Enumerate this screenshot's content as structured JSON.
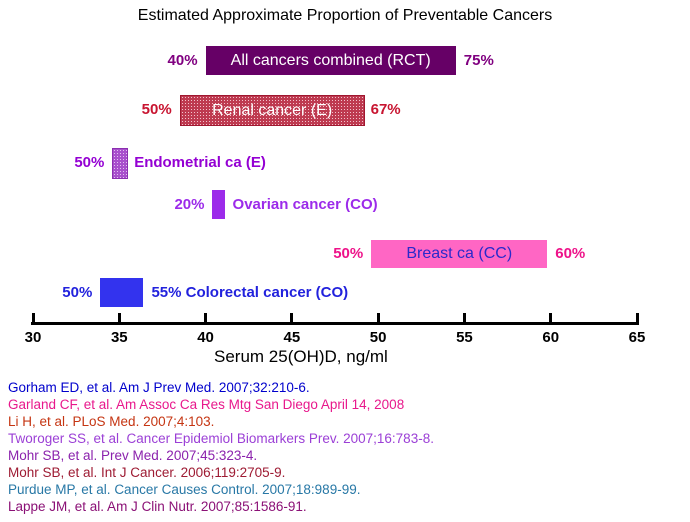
{
  "chart_data": {
    "type": "bar",
    "variant": "horizontal-range-bars",
    "title": "Estimated Approximate Proportion of Preventable Cancers",
    "xlabel": "Serum 25(OH)D, ng/ml",
    "xlim": [
      30,
      65
    ],
    "xticks": [
      "30",
      "35",
      "40",
      "45",
      "50",
      "55",
      "60",
      "65"
    ],
    "grid": false,
    "legend": "none",
    "bars": [
      {
        "name": "all-cancers-combined",
        "label": "All cancers combined (RCT)",
        "label_position": "inside",
        "range_ngml": [
          40.0,
          54.5
        ],
        "left_pct": "40%",
        "right_pct": "75%",
        "fill": "#660066",
        "pattern": false,
        "inside_text_color": "#FFFFFF",
        "accent": "#800080"
      },
      {
        "name": "renal-cancer",
        "label": "Renal cancer (E)",
        "label_position": "inside",
        "range_ngml": [
          38.5,
          49.1
        ],
        "left_pct": "50%",
        "right_pct": "67%",
        "fill": "#BE3A50",
        "pattern": true,
        "pattern_dot": "#F2C2CC",
        "border": "#A01830",
        "inside_text_color": "#FFFFFF",
        "accent": "#C81430"
      },
      {
        "name": "endometrial-ca",
        "label": "Endometrial ca (E)",
        "label_position": "right",
        "range_ngml": [
          34.6,
          35.4
        ],
        "left_pct": "50%",
        "right_pct": "",
        "fill": "#A850CC",
        "pattern": true,
        "pattern_dot": "#E4C0F2",
        "border": "#8B2FB0",
        "inside_text_color": "",
        "accent": "#9400D3"
      },
      {
        "name": "ovarian-cancer",
        "label": "Ovarian cancer (CO)",
        "label_position": "right",
        "range_ngml": [
          40.4,
          41.1
        ],
        "left_pct": "20%",
        "right_pct": "",
        "fill": "#9C2BEA",
        "pattern": false,
        "inside_text_color": "",
        "accent": "#9C2BEA"
      },
      {
        "name": "breast-ca",
        "label": "Breast ca (CC)",
        "label_position": "inside",
        "range_ngml": [
          49.6,
          59.8
        ],
        "left_pct": "50%",
        "right_pct": "60%",
        "fill": "#FF66C4",
        "pattern": false,
        "inside_text_color": "#2A2ACB",
        "accent": "#EE1289"
      },
      {
        "name": "colorectal-cancer",
        "label": "55% Colorectal cancer (CO)",
        "label_position": "right",
        "range_ngml": [
          33.9,
          36.4
        ],
        "left_pct": "50%",
        "right_pct": "",
        "fill": "#3333EE",
        "pattern": false,
        "inside_text_color": "",
        "accent": "#2222DD"
      }
    ]
  },
  "references": [
    {
      "text": "Gorham ED, et al. Am J Prev Med. 2007;32:210-6.",
      "color": "#0000CC"
    },
    {
      "text": "Garland CF, et al. Am Assoc Ca Res Mtg San Diego April 14, 2008",
      "color": "#E8188C"
    },
    {
      "text": "Li H, et al. PLoS Med. 2007;4:103.",
      "color": "#C53512"
    },
    {
      "text": "Tworoger SS, et al. Cancer Epidemiol Biomarkers Prev. 2007;16:783-8.",
      "color": "#9B3FD6"
    },
    {
      "text": "Mohr SB, et al. Prev Med. 2007;45:323-4.",
      "color": "#8B22AD"
    },
    {
      "text": "Mohr SB, et al.  Int J Cancer. 2006;119:2705-9.",
      "color": "#9E1B33"
    },
    {
      "text": "Purdue MP, et al. Cancer Causes Control. 2007;18:989-99.",
      "color": "#2878A6"
    },
    {
      "text": "Lappe JM, et al. Am J Clin Nutr. 2007;85:1586-91.",
      "color": "#8B1176"
    }
  ]
}
